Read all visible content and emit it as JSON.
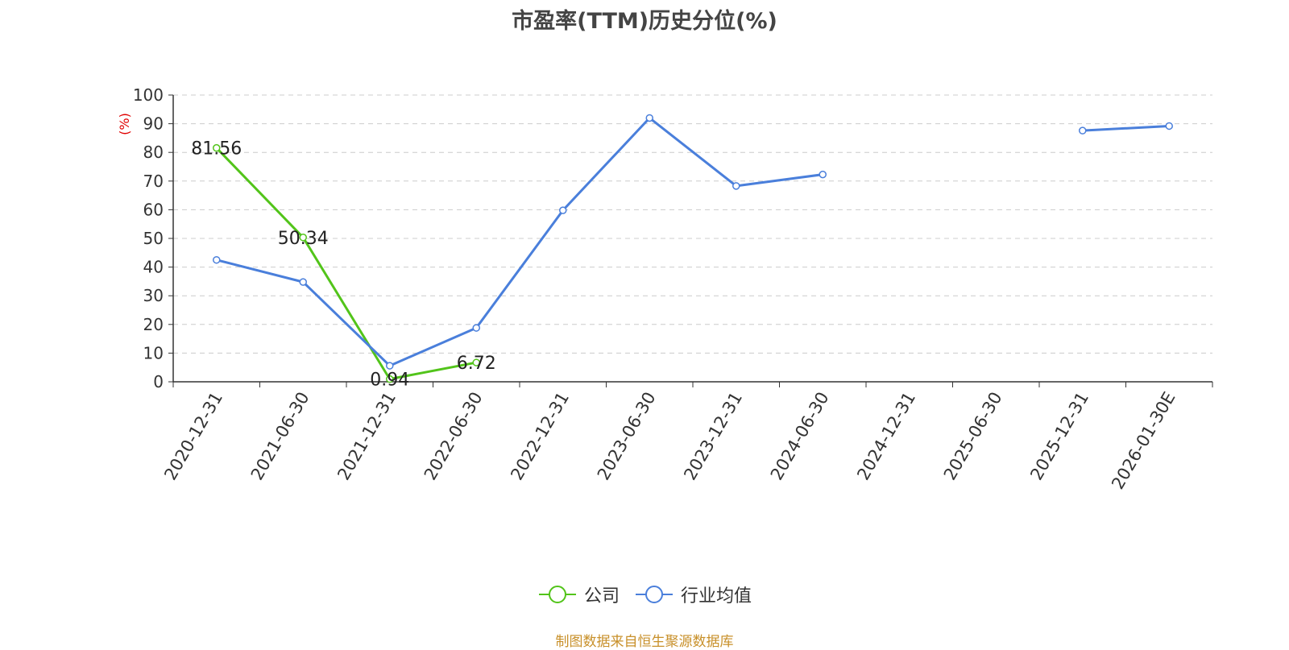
{
  "chart_data": {
    "type": "line",
    "title": "市盈率(TTM)历史分位(%)",
    "ylabel": "(%)",
    "ylim": [
      0,
      100
    ],
    "yticks": [
      0,
      10,
      20,
      30,
      40,
      50,
      60,
      70,
      80,
      90,
      100
    ],
    "categories": [
      "2020-12-31",
      "2021-06-30",
      "2021-12-31",
      "2022-06-30",
      "2022-12-31",
      "2023-06-30",
      "2023-12-31",
      "2024-06-30",
      "2024-12-31",
      "2025-06-30",
      "2025-12-31",
      "2026-01-30E"
    ],
    "series": [
      {
        "name": "公司",
        "color": "#52c41a",
        "values": [
          81.56,
          50.34,
          0.94,
          6.72,
          null,
          null,
          null,
          null,
          null,
          null,
          null,
          null
        ],
        "labels": [
          "81.56",
          "50.34",
          "0.94",
          "6.72",
          null,
          null,
          null,
          null,
          null,
          null,
          null,
          null
        ]
      },
      {
        "name": "行业均值",
        "color": "#4a7fdb",
        "values": [
          42.5,
          34.8,
          5.6,
          18.8,
          59.8,
          92.0,
          68.3,
          72.3,
          null,
          null,
          87.6,
          89.2
        ],
        "labels": null
      }
    ],
    "grid": true,
    "legend_position": "bottom-center"
  },
  "footer": {
    "source": "制图数据来自恒生聚源数据库"
  }
}
